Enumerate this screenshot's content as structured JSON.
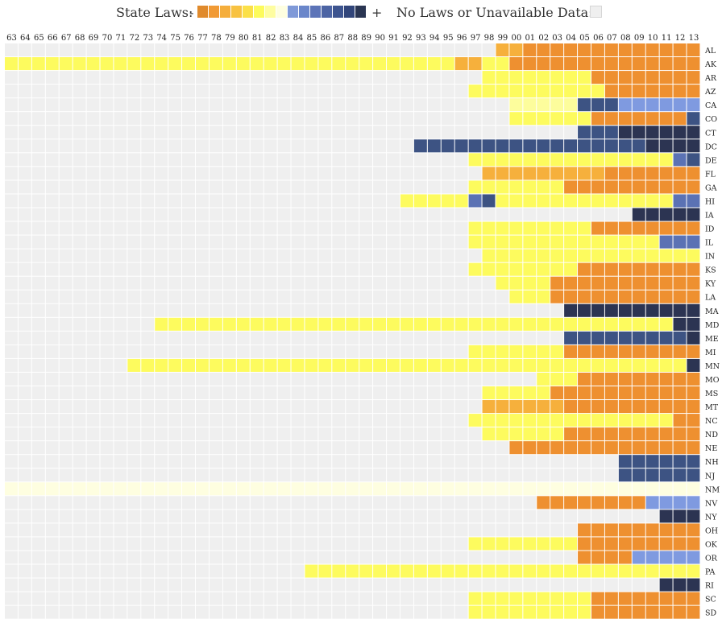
{
  "legend": {
    "state_laws_label": "State Laws:",
    "minus": "-",
    "plus": "+",
    "no_data_label": "No Laws or Unavailable Data:",
    "scale_colors": [
      "#e08a2c",
      "#f19a35",
      "#f5ae3c",
      "#f8c241",
      "#fbe048",
      "#fdfb5c",
      "#fefda0",
      "#fefee0",
      "#7f99d8",
      "#6a86ca",
      "#5c74b8",
      "#4c64a4",
      "#3d548f",
      "#31457a",
      "#2a3552"
    ],
    "no_data_color": "#efefef"
  },
  "chart_data": {
    "type": "heatmap",
    "x_labels": [
      "63",
      "64",
      "65",
      "66",
      "67",
      "68",
      "69",
      "70",
      "71",
      "72",
      "73",
      "74",
      "75",
      "76",
      "77",
      "78",
      "79",
      "80",
      "81",
      "82",
      "83",
      "84",
      "85",
      "86",
      "87",
      "88",
      "89",
      "90",
      "91",
      "92",
      "93",
      "94",
      "95",
      "96",
      "97",
      "98",
      "99",
      "00",
      "01",
      "02",
      "03",
      "04",
      "05",
      "06",
      "07",
      "08",
      "09",
      "10",
      "11",
      "12",
      "13"
    ],
    "y_labels": [
      "AL",
      "AK",
      "AR",
      "AZ",
      "CA",
      "CO",
      "CT",
      "DC",
      "DE",
      "FL",
      "GA",
      "HI",
      "IA",
      "ID",
      "IL",
      "IN",
      "KS",
      "KY",
      "LA",
      "MA",
      "MD",
      "ME",
      "MI",
      "MN",
      "MO",
      "MS",
      "MT",
      "NC",
      "ND",
      "NE",
      "NH",
      "NJ",
      "NM",
      "NV",
      "NY",
      "OH",
      "OK",
      "OR",
      "PA",
      "RI",
      "SC",
      "SD"
    ],
    "code_key": {
      "0": "no-law-or-unavailable",
      "1": "restrictive-orange",
      "2": "restrictive-light-orange",
      "3": "restrictive-yellow",
      "4": "light-yellow",
      "5": "pale-yellow",
      "6": "light-blue",
      "7": "medium-blue",
      "8": "dark-blue",
      "9": "darkest-blue"
    },
    "code_colors": {
      "0": "#efefef",
      "1": "#ee9030",
      "2": "#f6b03c",
      "3": "#fdfb5e",
      "4": "#fdfd9c",
      "5": "#fefee0",
      "6": "#7f9ae0",
      "7": "#5b72b4",
      "8": "#3d5383",
      "9": "#2c3452"
    },
    "rows": [
      "000000000000000000000000000000000000221111111111111",
      "333333333333333333333333333333333223311111111111111",
      "000000000000000000000000000000000003333333311111111",
      "000000000000000000000000000000000033333333331111111",
      "000000000000000000000000000000000000044444888666666",
      "000000000000000000000000000000000000033333311111118",
      "000000000000000000000000000000000000000000888999999",
      "000000000000000000000000000000888888888888888889999",
      "000000000000000000000000000000000033333333333333378",
      "000000000000000000000000000000000002222222221111111",
      "000000000000000000000000000000000033333331111111111",
      "000000000000000000000000000003333378333333333333377",
      "000000000000000000000000000000000000000000000099999",
      "000000000000000000000000000000000033333333311111111",
      "000000000000000000000000000000000033333333333333777",
      "000000000000000000000000000000000003333333333333333",
      "000000000000000000000000000000000033333333111111111",
      "000000000000000000000000000000000000333311111111111",
      "000000000000000000000000000000000000033311111111111",
      "000000000000000000000000000000000000000009999999999",
      "000000000003333333333333333333333333333333333333399",
      "000000000000000000000000000000000000000008888888889",
      "000000000000000000000000000000000033333331111111111",
      "000000000333333333333333333333333333333333333333339",
      "000000000000000000000000000000000000000333111111111",
      "000000000000000000000000000000000003333311111111111",
      "000000000000000000000000000000000002222221111111111",
      "000000000000000000000000000000000033333333333333311",
      "000000000000000000000000000000000003333331111111111",
      "000000000000000000000000000000000000011111111111111",
      "000000000000000000000000000000000000000000000888888",
      "000000000000000000000000000000000000000000000888888",
      "555555555555555555555555555555555555555555555555555",
      "000000000000000000000000000000000000000111111116666",
      "000000000000000000000000000000000000000000000000999",
      "000000000000000000000000000000000000000000111111111",
      "000000000000000000000000000000000033333333111111111",
      "000000000000000000000000000000000000000000111166666",
      "000000000000000000000033333333333333333333333333333",
      "000000000000000000000000000000000000000000000000999",
      "000000000000000000000000000000000033333333311111111",
      "000000000000000000000000000000000033333333311111111"
    ]
  }
}
